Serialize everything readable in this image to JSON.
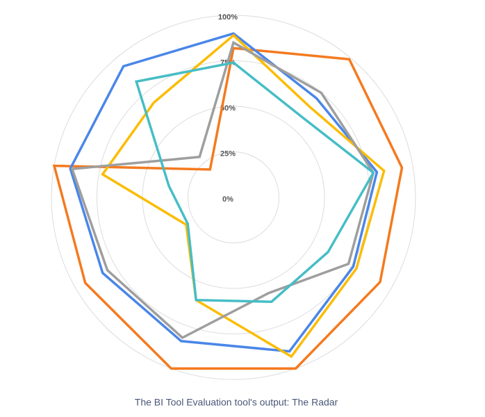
{
  "chart_data": {
    "type": "radar",
    "caption": "The BI Tool Evaluation tool's output: The Radar",
    "rlim": [
      0,
      100
    ],
    "rticks": [
      {
        "value": 0,
        "label": "0%"
      },
      {
        "value": 25,
        "label": "25%"
      },
      {
        "value": 50,
        "label": "50%"
      },
      {
        "value": 75,
        "label": "75%"
      },
      {
        "value": 100,
        "label": "100%"
      }
    ],
    "grid": true,
    "series": [
      {
        "color": "#f47a1f",
        "values": [
          82,
          99,
          94,
          93,
          100,
          100,
          94,
          100,
          20
        ]
      },
      {
        "color": "#4a86e8",
        "values": [
          90,
          71,
          80,
          76,
          90,
          84,
          83,
          91,
          94
        ]
      },
      {
        "color": "#fbbc04",
        "values": [
          89,
          65,
          84,
          78,
          93,
          60,
          30,
          73,
          68
        ]
      },
      {
        "color": "#9e9e9e",
        "values": [
          85,
          75,
          78,
          73,
          56,
          82,
          80,
          90,
          29
        ]
      },
      {
        "color": "#46bdc6",
        "values": [
          74,
          58,
          78,
          60,
          61,
          60,
          29,
          36,
          83
        ]
      }
    ]
  }
}
